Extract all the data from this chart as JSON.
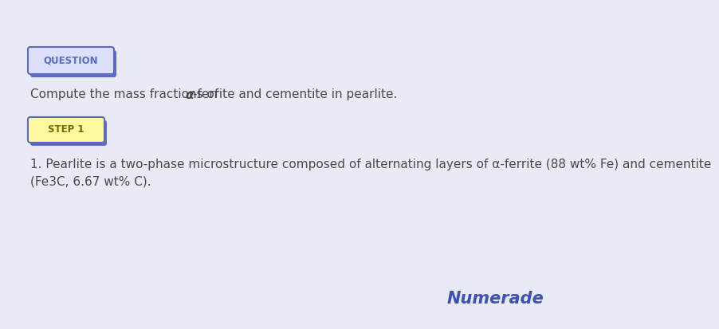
{
  "background_color": "#e8eaf6",
  "question_label": "QUESTION",
  "question_label_bg": "#dce0fa",
  "question_label_border": "#5c6bc0",
  "question_text_before": "Compute the mass fractions of ",
  "question_text_alpha": "α",
  "question_text_after": "-ferrite and cementite in pearlite.",
  "step_label": "STEP 1",
  "step_label_bg": "#fff9a0",
  "step_label_border": "#5c6bc0",
  "step_text_line1": "1. Pearlite is a two-phase microstructure composed of alternating layers of α-ferrite (88 wt% Fe) and cementite",
  "step_text_line2": "(Fe3C, 6.67 wt% C).",
  "brand_text": "Numerade",
  "brand_color": "#3f51b5",
  "text_color": "#4a4a4a",
  "font_size_main": 11,
  "font_size_label": 8.5,
  "font_size_brand": 15
}
